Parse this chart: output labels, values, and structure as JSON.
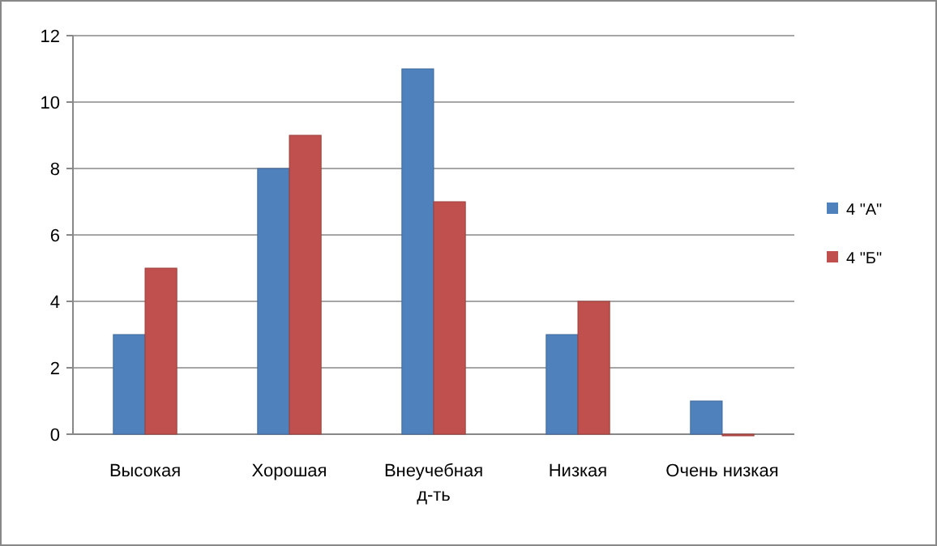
{
  "chart_data": {
    "type": "bar",
    "categories": [
      "Высокая",
      "Хорошая",
      "Внеучебная д-ть",
      "Низкая",
      "Очень низкая"
    ],
    "series": [
      {
        "name": "4 \"А\"",
        "color": "#4f81bd",
        "values": [
          3,
          8,
          11,
          3,
          1
        ]
      },
      {
        "name": "4 \"Б\"",
        "color": "#c0504d",
        "values": [
          5,
          9,
          7,
          4,
          0
        ]
      }
    ],
    "ylim": [
      0,
      12
    ],
    "yticks": [
      0,
      2,
      4,
      6,
      8,
      10,
      12
    ],
    "grid": "y",
    "legend": "right"
  }
}
